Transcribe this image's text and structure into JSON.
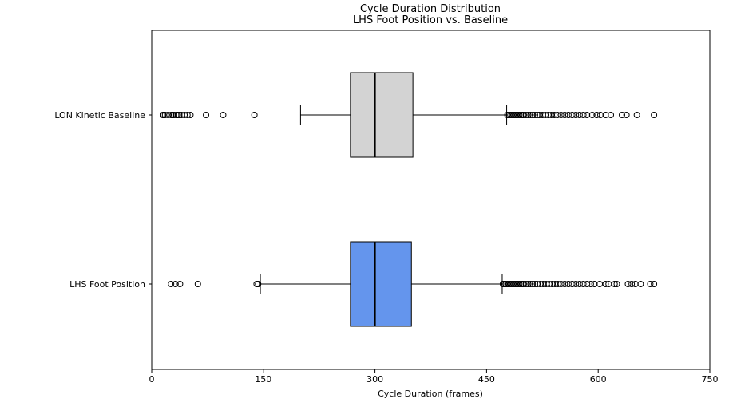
{
  "chart_data": {
    "type": "boxplot",
    "orientation": "horizontal",
    "title": "Cycle Duration Distribution\nLHS Foot Position vs. Baseline",
    "xlabel": "Cycle Duration (frames)",
    "ylabel": "",
    "xlim": [
      0,
      750
    ],
    "xticks": [
      0,
      150,
      300,
      450,
      600,
      750
    ],
    "grid": false,
    "series": [
      {
        "name": "LON Kinetic Baseline",
        "color": "#d3d3d3",
        "whisker_low": 200,
        "q1": 267,
        "median": 300,
        "q3": 351,
        "whisker_high": 477,
        "outliers_low": [
          15,
          16,
          18,
          22,
          26,
          28,
          30,
          33,
          35,
          37,
          40,
          44,
          48,
          52,
          73,
          96,
          138
        ],
        "outliers_high": [
          478,
          480,
          482,
          484,
          486,
          488,
          490,
          492,
          494,
          496,
          498,
          500,
          503,
          506,
          509,
          512,
          515,
          518,
          521,
          525,
          529,
          533,
          537,
          541,
          545,
          550,
          555,
          560,
          565,
          570,
          575,
          580,
          585,
          592,
          598,
          603,
          610,
          617,
          632,
          638,
          652,
          675
        ]
      },
      {
        "name": "LHS Foot Position",
        "color": "#6495ed",
        "whisker_low": 146,
        "q1": 267,
        "median": 300,
        "q3": 349,
        "whisker_high": 471,
        "outliers_low": [
          26,
          32,
          38,
          62,
          141,
          143
        ],
        "outliers_high": [
          472,
          474,
          476,
          478,
          480,
          482,
          484,
          486,
          488,
          490,
          492,
          494,
          496,
          498,
          500,
          503,
          506,
          509,
          512,
          515,
          518,
          522,
          526,
          530,
          534,
          538,
          542,
          546,
          550,
          555,
          560,
          565,
          570,
          575,
          580,
          585,
          590,
          595,
          602,
          610,
          614,
          622,
          625,
          640,
          645,
          650,
          657,
          670,
          675
        ]
      }
    ]
  }
}
